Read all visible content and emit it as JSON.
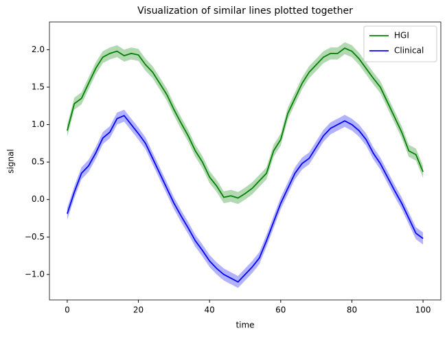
{
  "chart_data": {
    "type": "line",
    "title": "Visualization of similar lines plotted together",
    "xlabel": "time",
    "ylabel": "signal",
    "x": [
      0,
      2,
      4,
      6,
      8,
      10,
      12,
      14,
      16,
      18,
      20,
      22,
      24,
      26,
      28,
      30,
      32,
      34,
      36,
      38,
      40,
      42,
      44,
      46,
      48,
      50,
      52,
      54,
      56,
      58,
      60,
      62,
      64,
      66,
      68,
      70,
      72,
      74,
      76,
      78,
      80,
      82,
      84,
      86,
      88,
      90,
      92,
      94,
      96,
      98,
      100
    ],
    "series": [
      {
        "name": "HGI",
        "color": "#008000",
        "error": 0.08,
        "values": [
          0.92,
          1.28,
          1.35,
          1.55,
          1.75,
          1.9,
          1.95,
          1.98,
          1.92,
          1.95,
          1.93,
          1.8,
          1.7,
          1.55,
          1.4,
          1.2,
          1.02,
          0.85,
          0.65,
          0.5,
          0.3,
          0.18,
          0.03,
          0.05,
          0.02,
          0.08,
          0.15,
          0.25,
          0.35,
          0.65,
          0.8,
          1.15,
          1.35,
          1.55,
          1.7,
          1.8,
          1.9,
          1.95,
          1.95,
          2.02,
          1.98,
          1.88,
          1.75,
          1.62,
          1.5,
          1.3,
          1.1,
          0.9,
          0.65,
          0.6,
          0.37
        ]
      },
      {
        "name": "Clinical",
        "color": "#0000ff",
        "error": 0.08,
        "values": [
          -0.19,
          0.1,
          0.35,
          0.45,
          0.62,
          0.82,
          0.9,
          1.08,
          1.12,
          1.0,
          0.88,
          0.75,
          0.55,
          0.35,
          0.15,
          -0.05,
          -0.22,
          -0.38,
          -0.55,
          -0.68,
          -0.82,
          -0.92,
          -1.0,
          -1.05,
          -1.1,
          -1.0,
          -0.9,
          -0.78,
          -0.55,
          -0.3,
          -0.05,
          0.15,
          0.35,
          0.48,
          0.55,
          0.7,
          0.85,
          0.95,
          1.0,
          1.05,
          1.0,
          0.92,
          0.8,
          0.62,
          0.48,
          0.3,
          0.12,
          -0.05,
          -0.25,
          -0.45,
          -0.52
        ]
      }
    ],
    "xlim": [
      -5,
      105
    ],
    "ylim": [
      -1.34,
      2.37
    ],
    "xticks": [
      0,
      20,
      40,
      60,
      80,
      100
    ],
    "yticks": [
      {
        "value": -1.0,
        "label": "−1.0"
      },
      {
        "value": -0.5,
        "label": "−0.5"
      },
      {
        "value": 0,
        "label": "0.0"
      },
      {
        "value": 0.5,
        "label": "0.5"
      },
      {
        "value": 1,
        "label": "1.0"
      },
      {
        "value": 1.5,
        "label": "1.5"
      },
      {
        "value": 2,
        "label": "2.0"
      }
    ],
    "grid": false,
    "legend": "upper right"
  }
}
